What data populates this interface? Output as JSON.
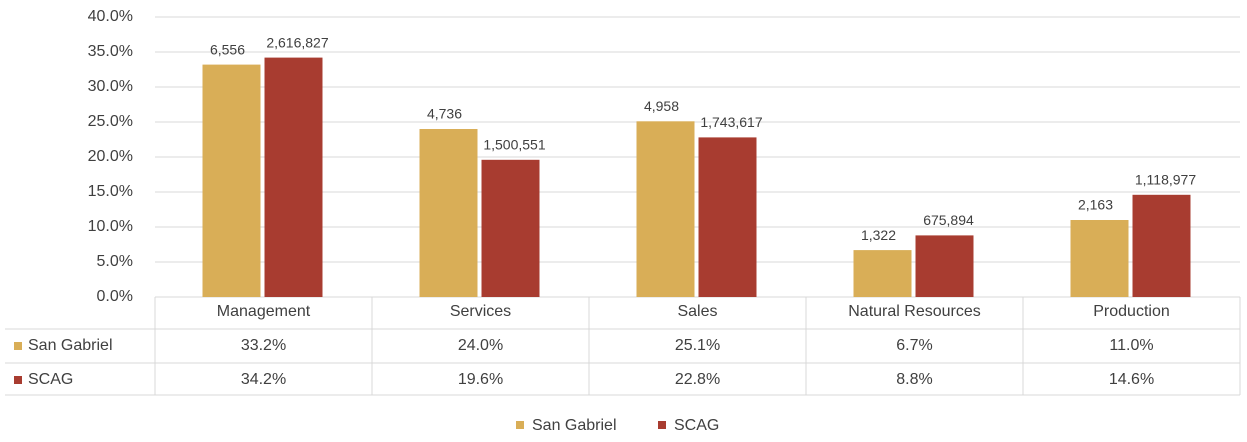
{
  "chart_data": {
    "type": "bar",
    "categories": [
      "Management",
      "Services",
      "Sales",
      "Natural Resources",
      "Production"
    ],
    "series": [
      {
        "name": "San Gabriel",
        "color": "#d9ae57",
        "values": [
          33.2,
          24.0,
          25.1,
          6.7,
          11.0
        ],
        "value_labels": [
          "33.2%",
          "24.0%",
          "25.1%",
          "6.7%",
          "11.0%"
        ],
        "data_labels": [
          "6,556",
          "4,736",
          "4,958",
          "1,322",
          "2,163"
        ]
      },
      {
        "name": "SCAG",
        "color": "#a83c30",
        "values": [
          34.2,
          19.6,
          22.8,
          8.8,
          14.6
        ],
        "value_labels": [
          "34.2%",
          "19.6%",
          "22.8%",
          "8.8%",
          "14.6%"
        ],
        "data_labels": [
          "2,616,827",
          "1,500,551",
          "1,743,617",
          "675,894",
          "1,118,977"
        ]
      }
    ],
    "ylim": [
      0,
      40
    ],
    "yticks": [
      {
        "value": 0,
        "label": "0.0%"
      },
      {
        "value": 5,
        "label": "5.0%"
      },
      {
        "value": 10,
        "label": "10.0%"
      },
      {
        "value": 15,
        "label": "15.0%"
      },
      {
        "value": 20,
        "label": "20.0%"
      },
      {
        "value": 25,
        "label": "25.0%"
      },
      {
        "value": 30,
        "label": "30.0%"
      },
      {
        "value": 35,
        "label": "35.0%"
      },
      {
        "value": 40,
        "label": "40.0%"
      }
    ],
    "grid": true,
    "legend": "bottom",
    "data_table": true
  }
}
